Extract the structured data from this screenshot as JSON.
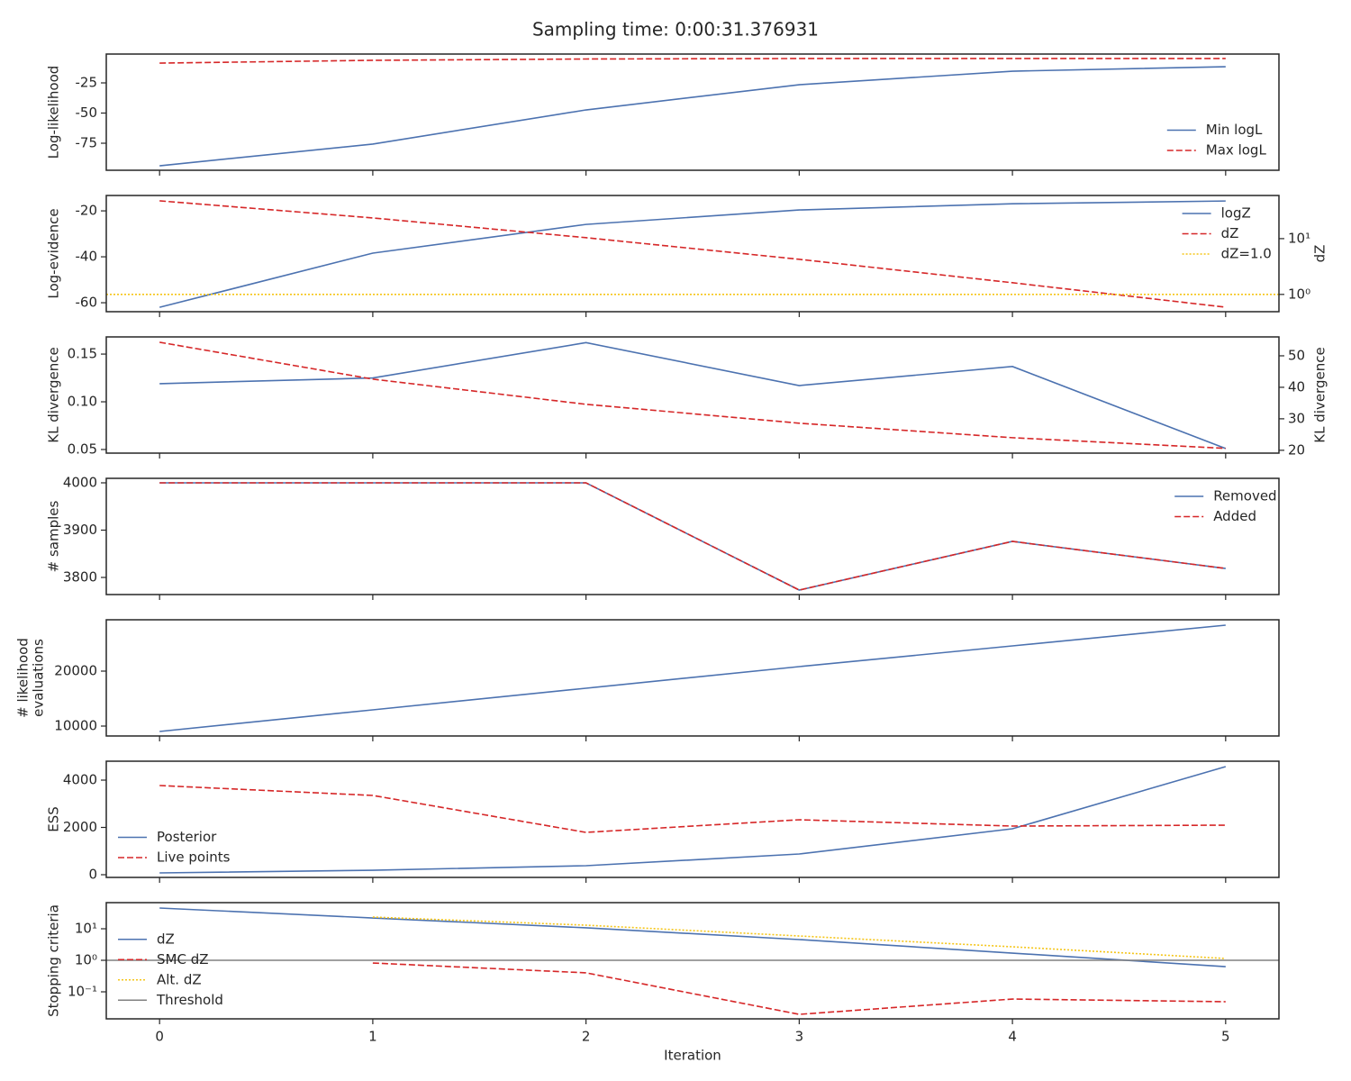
{
  "title": "Sampling time: 0:00:31.376931",
  "chart_data": [
    {
      "type": "line",
      "ylabel": "Log-likelihood",
      "x": [
        0,
        1,
        2,
        3,
        4,
        5
      ],
      "xlim": [
        -0.25,
        5.25
      ],
      "xticks": [
        0,
        1,
        2,
        3,
        4,
        5
      ],
      "ylim": [
        -97.4,
        -1.1
      ],
      "yticks": [
        -25,
        -50,
        -75
      ],
      "legend": "lower right",
      "series": [
        {
          "name": "Min logL",
          "color": "#4c72b0",
          "style": "solid",
          "values": [
            -93.7,
            -75.7,
            -47.4,
            -26.5,
            -15.3,
            -11.6
          ]
        },
        {
          "name": "Max logL",
          "color": "#d62728",
          "style": "dashed",
          "values": [
            -8.6,
            -6.3,
            -5.2,
            -4.8,
            -4.8,
            -4.8
          ]
        }
      ]
    },
    {
      "type": "line",
      "ylabel": "Log-evidence",
      "y2label": "dZ",
      "x": [
        0,
        1,
        2,
        3,
        4,
        5
      ],
      "xlim": [
        -0.25,
        5.25
      ],
      "xticks": [
        0,
        1,
        2,
        3,
        4,
        5
      ],
      "ylim": [
        -63.9,
        -13.3
      ],
      "yticks": [
        -20,
        -40,
        -60
      ],
      "y2lim": [
        0.49,
        59.4
      ],
      "y2scale": "log",
      "y2ticks": [
        {
          "value": 10,
          "label": "10¹"
        },
        {
          "value": 1,
          "label": "10⁰"
        }
      ],
      "legend": "upper right",
      "series": [
        {
          "name": "logZ",
          "color": "#4c72b0",
          "style": "solid",
          "values": [
            -62,
            -38.4,
            -25.9,
            -19.6,
            -16.9,
            -15.7
          ]
        },
        {
          "name": "dZ",
          "color": "#d62728",
          "style": "dashed",
          "axis": "y2",
          "values": [
            47.6,
            23.5,
            10.4,
            4.26,
            1.62,
            0.59
          ]
        }
      ],
      "hlines": [
        {
          "name": "dZ=1.0",
          "color": "#f5c518",
          "style": "dotted",
          "axis": "y2",
          "value": 1.0
        }
      ]
    },
    {
      "type": "line",
      "ylabel": "KL divergence",
      "y2label": "KL divergence",
      "x": [
        0,
        1,
        2,
        3,
        4,
        5
      ],
      "xlim": [
        -0.25,
        5.25
      ],
      "xticks": [
        0,
        1,
        2,
        3,
        4,
        5
      ],
      "ylim": [
        0.0462,
        0.168
      ],
      "yticks": [
        0.15,
        {
          "value": 0.1,
          "label": "0.10"
        },
        0.05
      ],
      "y2lim": [
        19.1,
        56
      ],
      "y2ticks": [
        50,
        40,
        30,
        20
      ],
      "series": [
        {
          "color": "#4c72b0",
          "style": "solid",
          "values": [
            0.119,
            0.125,
            0.162,
            0.117,
            0.137,
            0.051
          ]
        },
        {
          "color": "#d62728",
          "style": "dashed",
          "axis": "y2",
          "values": [
            54.3,
            42.6,
            34.6,
            28.6,
            24.0,
            20.6
          ]
        }
      ]
    },
    {
      "type": "line",
      "ylabel": "# samples",
      "x": [
        0,
        1,
        2,
        3,
        4,
        5
      ],
      "xlim": [
        -0.25,
        5.25
      ],
      "xticks": [
        0,
        1,
        2,
        3,
        4,
        5
      ],
      "ylim": [
        3763.8,
        4009.5
      ],
      "yticks": [
        4000,
        3900,
        3800
      ],
      "legend": "upper right",
      "series": [
        {
          "name": "Removed",
          "color": "#4c72b0",
          "style": "solid",
          "values": [
            4000,
            4000,
            4000,
            3773.3,
            3876.2,
            3819
          ]
        },
        {
          "name": "Added",
          "color": "#d62728",
          "style": "dashed",
          "values": [
            4000,
            4000,
            4000,
            3773.3,
            3876.2,
            3819
          ]
        }
      ]
    },
    {
      "type": "line",
      "ylabel": [
        "# likelihood",
        "evaluations"
      ],
      "x": [
        0,
        1,
        2,
        3,
        4,
        5
      ],
      "xlim": [
        -0.25,
        5.25
      ],
      "xticks": [
        0,
        1,
        2,
        3,
        4,
        5
      ],
      "ylim": [
        8197,
        29344
      ],
      "yticks": [
        20000,
        10000
      ],
      "series": [
        {
          "color": "#4c72b0",
          "style": "solid",
          "values": [
            9016,
            12951,
            16885,
            20820,
            24590,
            28361
          ]
        }
      ]
    },
    {
      "type": "line",
      "ylabel": "ESS",
      "x": [
        0,
        1,
        2,
        3,
        4,
        5
      ],
      "xlim": [
        -0.25,
        5.25
      ],
      "xticks": [
        0,
        1,
        2,
        3,
        4,
        5
      ],
      "ylim": [
        -114,
        4800
      ],
      "yticks": [
        4000,
        2000,
        0
      ],
      "legend": "lower left",
      "series": [
        {
          "name": "Posterior",
          "color": "#4c72b0",
          "style": "solid",
          "values": [
            76,
            190,
            381,
            876,
            1943,
            4571
          ]
        },
        {
          "name": "Live points",
          "color": "#d62728",
          "style": "dashed",
          "values": [
            3771,
            3352,
            1790,
            2324,
            2057,
            2095
          ]
        }
      ]
    },
    {
      "type": "line",
      "ylabel": "Stopping criteria",
      "xlabel": "Iteration",
      "x": [
        0,
        1,
        2,
        3,
        4,
        5
      ],
      "xlim": [
        -0.25,
        5.25
      ],
      "xticks": [
        0,
        1,
        2,
        3,
        4,
        5
      ],
      "xticklabels": true,
      "yscale": "log",
      "ylim": [
        0.0139,
        67.4
      ],
      "yticks": [
        {
          "value": 10,
          "label": "10¹"
        },
        {
          "value": 1,
          "label": "10⁰"
        },
        {
          "value": 0.1,
          "label": "10⁻¹"
        }
      ],
      "legend": "center left",
      "series": [
        {
          "name": "dZ",
          "color": "#4c72b0",
          "style": "solid",
          "values": [
            45.4,
            22.0,
            10.7,
            4.54,
            1.69,
            0.63
          ]
        },
        {
          "name": "SMC dZ",
          "color": "#d62728",
          "style": "dashed",
          "values": [
            null,
            0.82,
            0.4,
            0.0193,
            0.059,
            0.0485
          ]
        },
        {
          "name": "Alt. dZ",
          "color": "#f5c518",
          "style": "dotted",
          "values": [
            null,
            23.5,
            13.0,
            5.9,
            2.68,
            1.14
          ]
        }
      ],
      "hlines": [
        {
          "name": "Threshold",
          "color": "#808080",
          "style": "solid",
          "value": 1
        }
      ]
    }
  ]
}
